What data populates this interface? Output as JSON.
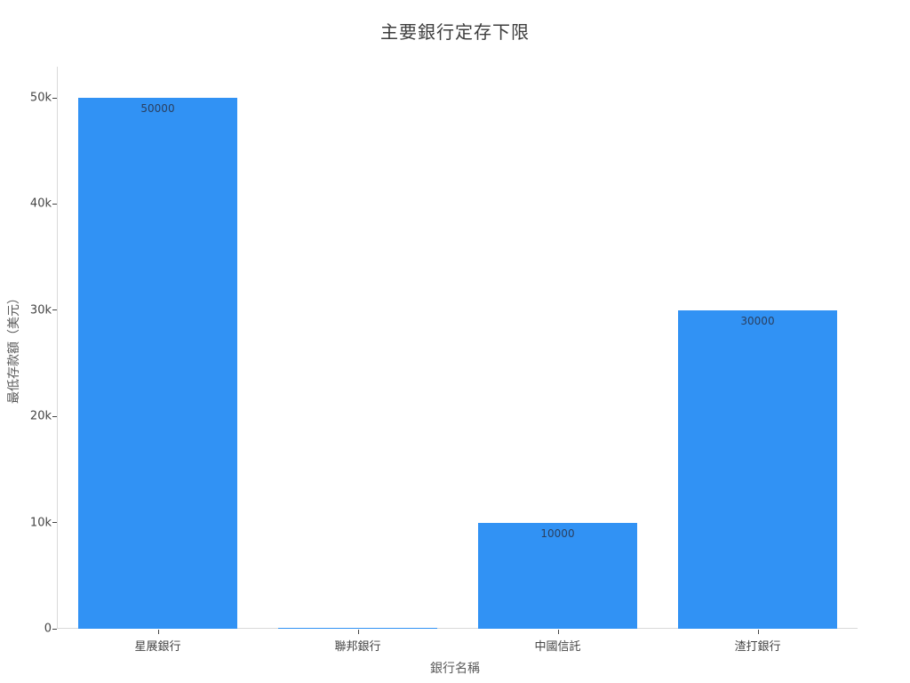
{
  "chart_data": {
    "type": "bar",
    "title": "主要銀行定存下限",
    "xlabel": "銀行名稱",
    "ylabel": "最低存款額（美元）",
    "categories": [
      "星展銀行",
      "聯邦銀行",
      "中國信託",
      "渣打銀行"
    ],
    "values": [
      50000,
      100,
      10000,
      30000
    ],
    "bar_labels": [
      "50000",
      "",
      "10000",
      "30000"
    ],
    "ylim": [
      0,
      50000
    ],
    "y_tick_values": [
      0,
      10000,
      20000,
      30000,
      40000,
      50000
    ],
    "y_tick_labels": [
      "0",
      "10k",
      "20k",
      "30k",
      "40k",
      "50k"
    ],
    "grid": false,
    "legend_position": "none",
    "colors": {
      "bar_fill": "#3192f4",
      "bar_label_text": "#2a3f5f",
      "axis_line": "#d9d9d9",
      "tick_mark": "#444444",
      "tick_label_text": "#444444",
      "axis_title_text": "#5a5a5a",
      "chart_title_text": "#3d3d3d",
      "background": "#ffffff"
    }
  }
}
